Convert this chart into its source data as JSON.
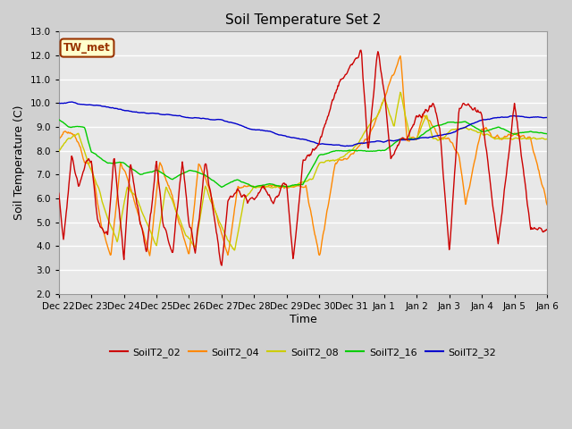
{
  "title": "Soil Temperature Set 2",
  "xlabel": "Time",
  "ylabel": "Soil Temperature (C)",
  "ylim": [
    2.0,
    13.0
  ],
  "yticks": [
    2.0,
    3.0,
    4.0,
    5.0,
    6.0,
    7.0,
    8.0,
    9.0,
    10.0,
    11.0,
    12.0,
    13.0
  ],
  "xtick_labels": [
    "Dec 22",
    "Dec 23",
    "Dec 24",
    "Dec 25",
    "Dec 26",
    "Dec 27",
    "Dec 28",
    "Dec 29",
    "Dec 30",
    "Dec 31",
    "Jan 1",
    "Jan 2",
    "Jan 3",
    "Jan 4",
    "Jan 5",
    "Jan 6"
  ],
  "colors": {
    "SoilT2_02": "#cc0000",
    "SoilT2_04": "#ff8800",
    "SoilT2_08": "#cccc00",
    "SoilT2_16": "#00cc00",
    "SoilT2_32": "#0000cc"
  },
  "fig_bg": "#d0d0d0",
  "plot_bg": "#e8e8e8",
  "grid_color": "#ffffff",
  "annotation_text": "TW_met",
  "annotation_bg": "#ffffcc",
  "annotation_border": "#993300"
}
